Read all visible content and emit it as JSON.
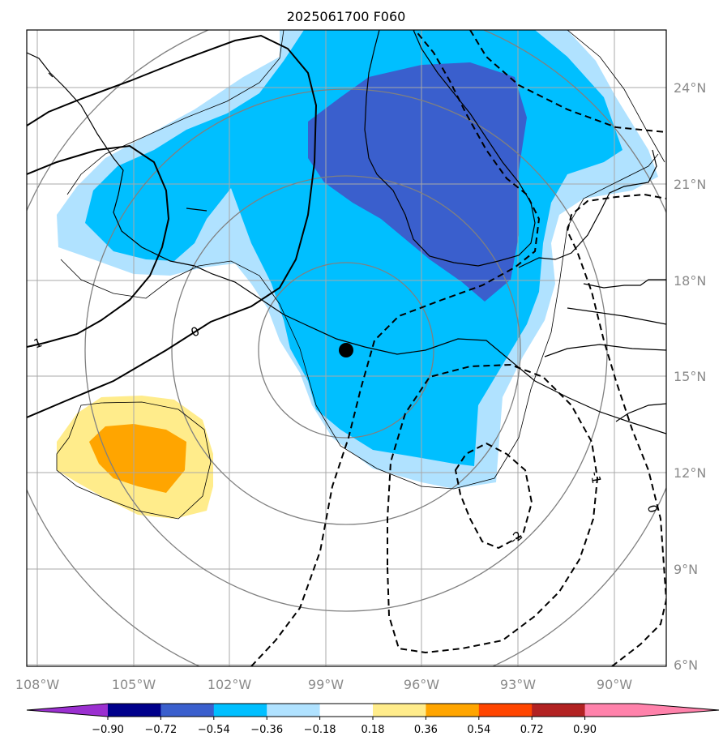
{
  "title": "2025061700 F060",
  "lon_ticks": [
    "108°W",
    "105°W",
    "102°W",
    "99°W",
    "96°W",
    "93°W",
    "90°W"
  ],
  "lat_ticks": [
    "24°N",
    "21°N",
    "18°N",
    "15°N",
    "12°N",
    "9°N",
    "6°N"
  ],
  "contour_labels": [
    "-1",
    "0",
    "-1",
    "-2",
    "0"
  ],
  "colorbar": {
    "labels": [
      "−0.90",
      "−0.72",
      "−0.54",
      "−0.36",
      "−0.18",
      "0.18",
      "0.36",
      "0.54",
      "0.72",
      "0.90"
    ],
    "colors": [
      "#9b30d0",
      "#00008b",
      "#3a5fcd",
      "#00bfff",
      "#b0e2ff",
      "#ffffff",
      "#ffec8b",
      "#ffa500",
      "#ff4500",
      "#b22222",
      "#ff82ab",
      "#ff82ab"
    ]
  },
  "colors": {
    "very_light_blue": "#b0e2ff",
    "deep_sky_blue": "#00bfff",
    "royal_blue": "#3a5fcd",
    "light_yellow": "#ffec8b",
    "orange": "#ffa500"
  },
  "marker": {
    "lon": -98.3,
    "lat": 15.8
  }
}
